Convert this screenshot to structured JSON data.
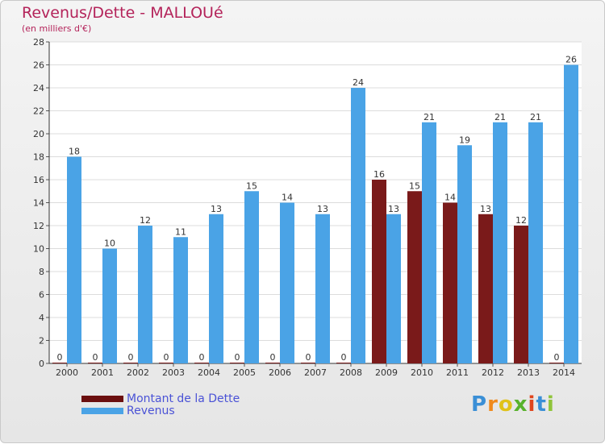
{
  "header": {
    "title": "Revenus/Dette - MALLOUé",
    "subtitle": "(en milliers d'€)"
  },
  "chart_data": {
    "type": "bar",
    "categories": [
      "2000",
      "2001",
      "2002",
      "2003",
      "2004",
      "2005",
      "2006",
      "2007",
      "2008",
      "2009",
      "2010",
      "2011",
      "2012",
      "2013",
      "2014"
    ],
    "series": [
      {
        "name": "Montant de la Dette",
        "color": "#7a1a1a",
        "values": [
          0,
          0,
          0,
          0,
          0,
          0,
          0,
          0,
          0,
          16,
          15,
          14,
          13,
          12,
          0
        ]
      },
      {
        "name": "Revenus",
        "color": "#4aa3e6",
        "values": [
          18,
          10,
          12,
          11,
          13,
          15,
          14,
          13,
          24,
          13,
          21,
          19,
          21,
          21,
          26
        ]
      }
    ],
    "ylim": [
      0,
      28
    ],
    "yticks": [
      0,
      2,
      4,
      6,
      8,
      10,
      12,
      14,
      16,
      18,
      20,
      22,
      24,
      26,
      28
    ],
    "grid": true,
    "legend": "bottom-left"
  },
  "legend": {
    "items": [
      {
        "label": "Montant de la Dette",
        "color": "#6b0f0f"
      },
      {
        "label": "Revenus",
        "color": "#4aa3e6"
      }
    ]
  },
  "logo": {
    "letters": [
      "P",
      "r",
      "o",
      "x",
      "i",
      "t",
      "i"
    ],
    "colors": [
      "#3a8fd6",
      "#f08a1c",
      "#e0c21a",
      "#58b22c",
      "#e0451c",
      "#3a8fd6",
      "#8fc43a"
    ]
  }
}
